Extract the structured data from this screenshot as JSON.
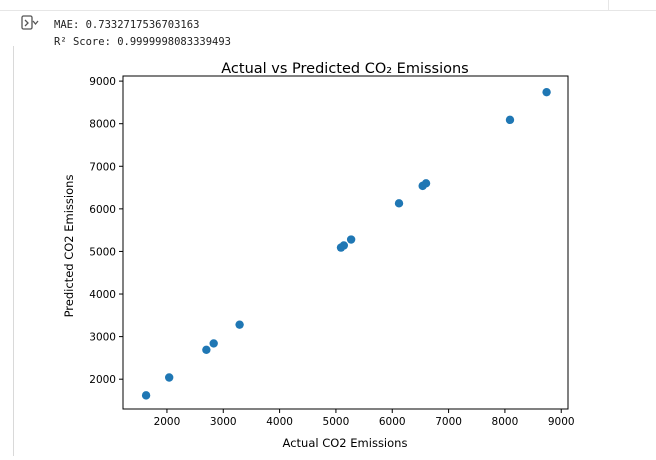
{
  "output": {
    "toggle_icon": "output-collapse-icon",
    "lines": [
      "MAE: 0.7332717536703163",
      "R² Score: 0.9999998083339493"
    ]
  },
  "chart_data": {
    "type": "scatter",
    "title": "Actual vs Predicted CO₂ Emissions",
    "xlabel": "Actual CO2 Emissions",
    "ylabel": "Predicted CO2 Emissions",
    "xlim": [
      1220,
      9120
    ],
    "ylim": [
      1300,
      9120
    ],
    "xticks": [
      2000,
      3000,
      4000,
      5000,
      6000,
      7000,
      8000,
      9000
    ],
    "yticks": [
      2000,
      3000,
      4000,
      5000,
      6000,
      7000,
      8000,
      9000
    ],
    "grid": false,
    "marker_color": "#1f77b4",
    "points": [
      {
        "x": 1630,
        "y": 1620
      },
      {
        "x": 2040,
        "y": 2040
      },
      {
        "x": 2700,
        "y": 2690
      },
      {
        "x": 2830,
        "y": 2840
      },
      {
        "x": 3290,
        "y": 3280
      },
      {
        "x": 5090,
        "y": 5090
      },
      {
        "x": 5140,
        "y": 5140
      },
      {
        "x": 5270,
        "y": 5280
      },
      {
        "x": 6120,
        "y": 6130
      },
      {
        "x": 6540,
        "y": 6540
      },
      {
        "x": 6600,
        "y": 6600
      },
      {
        "x": 8090,
        "y": 8090
      },
      {
        "x": 8740,
        "y": 8740
      }
    ]
  }
}
